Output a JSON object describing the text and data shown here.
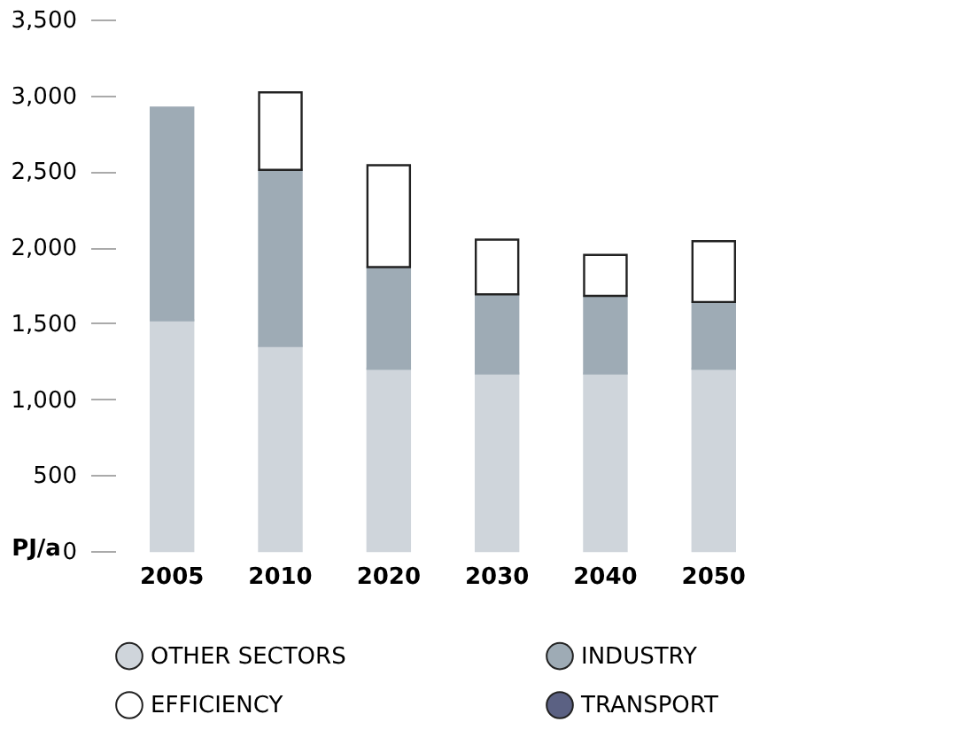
{
  "chart_data": {
    "type": "bar",
    "stacked": true,
    "ylabel": "PJ/a",
    "categories": [
      "2005",
      "2010",
      "2020",
      "2030",
      "2040",
      "2050"
    ],
    "series": [
      {
        "name": "OTHER SECTORS",
        "color": "#cfd5db",
        "values": [
          1520,
          1350,
          1200,
          1170,
          1170,
          1200
        ]
      },
      {
        "name": "INDUSTRY",
        "color": "#9eabb5",
        "values": [
          1400,
          1160,
          670,
          520,
          510,
          440
        ]
      },
      {
        "name": "EFFICIENCY",
        "color": "#ffffff",
        "values": [
          null,
          510,
          670,
          360,
          270,
          400
        ]
      },
      {
        "name": "TRANSPORT",
        "color": "#5b6183",
        "values": [
          null,
          null,
          null,
          null,
          null,
          null
        ]
      }
    ],
    "ylim": [
      0,
      3500
    ],
    "yticks": [
      0,
      500,
      {
        "value": 1000,
        "label": "1,000"
      },
      {
        "value": 1500,
        "label": "1,500"
      },
      {
        "value": 2000,
        "label": "2,000"
      },
      {
        "value": 2500,
        "label": "2,500"
      },
      {
        "value": 3000,
        "label": "3,000"
      },
      {
        "value": 3500,
        "label": "3,500"
      }
    ],
    "grid": false,
    "legend": "bottom"
  }
}
